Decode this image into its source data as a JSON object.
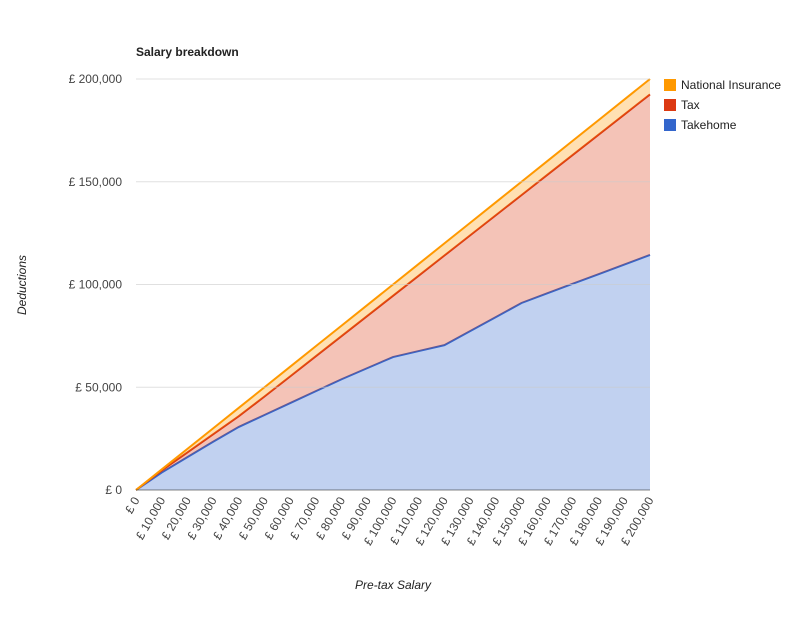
{
  "chart_data": {
    "type": "stacked-area",
    "title": "Salary breakdown",
    "x_label": "Pre-tax Salary",
    "y_label": "Deductions",
    "categories": [
      "£ 0",
      "£ 10,000",
      "£ 20,000",
      "£ 30,000",
      "£ 40,000",
      "£ 50,000",
      "£ 60,000",
      "£ 70,000",
      "£ 80,000",
      "£ 90,000",
      "£ 100,000",
      "£ 110,000",
      "£ 120,000",
      "£ 130,000",
      "£ 140,000",
      "£ 150,000",
      "£ 160,000",
      "£ 170,000",
      "£ 180,000",
      "£ 190,000",
      "£ 200,000"
    ],
    "series": [
      {
        "name": "National Insurance",
        "color": "#ff9900",
        "values": [
          0,
          500,
          1700,
          2900,
          4100,
          4500,
          4700,
          4900,
          5100,
          5300,
          5500,
          5700,
          5900,
          6100,
          6300,
          6500,
          6700,
          6900,
          7100,
          7300,
          7500
        ]
      },
      {
        "name": "Tax",
        "color": "#dc3912",
        "values": [
          0,
          1000,
          2300,
          3600,
          5200,
          9000,
          13000,
          17000,
          21000,
          25400,
          29800,
          36700,
          43600,
          46600,
          49600,
          52500,
          57600,
          62700,
          67900,
          73000,
          78100
        ]
      },
      {
        "name": "Takehome",
        "color": "#3366cc",
        "values": [
          0,
          8500,
          16000,
          23500,
          30700,
          36500,
          42300,
          48100,
          53900,
          59300,
          64700,
          67600,
          70500,
          77300,
          84100,
          91000,
          95700,
          100400,
          105000,
          109700,
          114400
        ]
      }
    ],
    "ylim": [
      0,
      200000
    ],
    "yticks": [
      {
        "value": 0,
        "label": "£ 0"
      },
      {
        "value": 50000,
        "label": "£ 50,000"
      },
      {
        "value": 100000,
        "label": "£ 100,000"
      },
      {
        "value": 150000,
        "label": "£ 150,000"
      },
      {
        "value": 200000,
        "label": "£ 200,000"
      }
    ],
    "grid": true,
    "legend": "right"
  }
}
